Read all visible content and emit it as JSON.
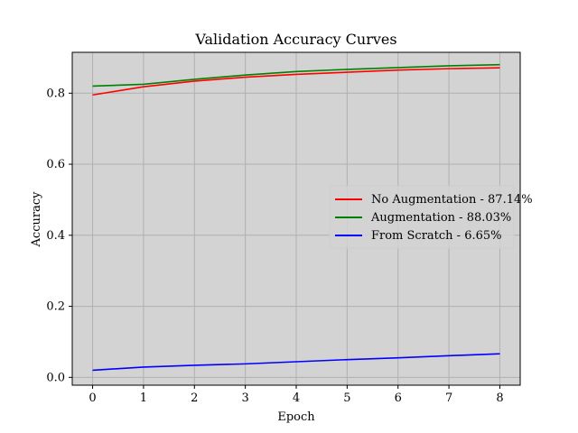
{
  "chart_data": {
    "type": "line",
    "title": "Validation Accuracy Curves",
    "xlabel": "Epoch",
    "ylabel": "Accuracy",
    "xlim": [
      -0.4,
      8.4
    ],
    "ylim": [
      -0.022,
      0.915
    ],
    "xticks": [
      0,
      1,
      2,
      3,
      4,
      5,
      6,
      7,
      8
    ],
    "yticks": [
      0.0,
      0.2,
      0.4,
      0.6,
      0.8
    ],
    "ytick_labels": [
      "0.0",
      "0.2",
      "0.4",
      "0.6",
      "0.8"
    ],
    "grid": true,
    "legend_placement": "center-right",
    "background_color": "#d3d3d3",
    "grid_color": "#b0b0b0",
    "x": [
      0,
      1,
      2,
      3,
      4,
      5,
      6,
      7,
      8
    ],
    "series": [
      {
        "name": "No Augmentation - 87.14%",
        "color": "#ff0000",
        "values": [
          0.795,
          0.818,
          0.834,
          0.845,
          0.853,
          0.859,
          0.865,
          0.869,
          0.8714
        ]
      },
      {
        "name": "Augmentation - 88.03%",
        "color": "#008000",
        "values": [
          0.82,
          0.825,
          0.839,
          0.851,
          0.861,
          0.867,
          0.872,
          0.877,
          0.8803
        ]
      },
      {
        "name": "From Scratch - 6.65%",
        "color": "#0000ff",
        "values": [
          0.02,
          0.029,
          0.034,
          0.038,
          0.044,
          0.05,
          0.055,
          0.061,
          0.0665
        ]
      }
    ]
  }
}
